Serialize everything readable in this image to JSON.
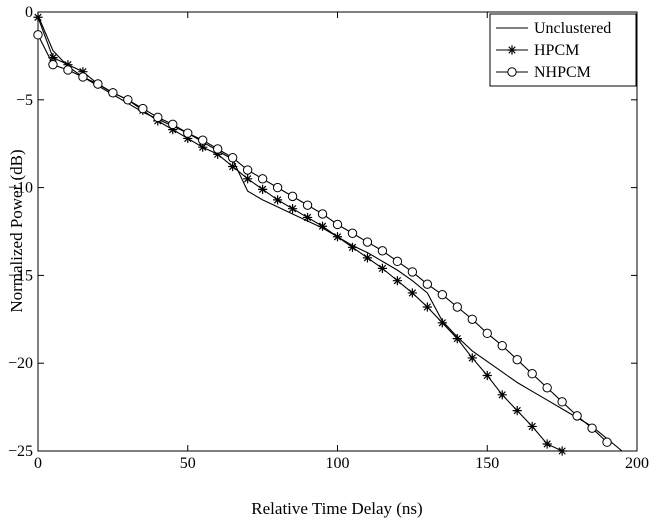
{
  "chart_data": {
    "type": "line",
    "xlabel": "Relative Time Delay (ns)",
    "ylabel": "Normalized Power (dB)",
    "xlim": [
      0,
      200
    ],
    "ylim": [
      -25,
      0
    ],
    "xticks": [
      0,
      50,
      100,
      150,
      200
    ],
    "yticks": [
      0,
      -5,
      -10,
      -15,
      -20,
      -25
    ],
    "grid": false,
    "legend_position": "top-right",
    "series": [
      {
        "name": "Unclustered",
        "marker": "none",
        "x": [
          0,
          5,
          10,
          15,
          20,
          25,
          30,
          35,
          40,
          45,
          50,
          55,
          60,
          65,
          70,
          75,
          80,
          85,
          90,
          95,
          100,
          105,
          110,
          115,
          120,
          125,
          130,
          135,
          140,
          145,
          150,
          155,
          160,
          165,
          170,
          175,
          180,
          185,
          190,
          195
        ],
        "y": [
          -0.2,
          -2.2,
          -3.1,
          -3.7,
          -4.2,
          -4.7,
          -5.2,
          -5.7,
          -6.1,
          -6.5,
          -6.9,
          -7.4,
          -7.9,
          -8.4,
          -10.2,
          -10.7,
          -11.1,
          -11.5,
          -11.9,
          -12.3,
          -12.8,
          -13.3,
          -13.7,
          -14.2,
          -14.7,
          -15.3,
          -16.0,
          -17.6,
          -18.5,
          -19.3,
          -19.9,
          -20.5,
          -21.1,
          -21.6,
          -22.1,
          -22.6,
          -23.1,
          -23.6,
          -24.3,
          -25.0
        ]
      },
      {
        "name": "HPCM",
        "marker": "star",
        "x": [
          0,
          5,
          10,
          15,
          20,
          25,
          30,
          35,
          40,
          45,
          50,
          55,
          60,
          65,
          70,
          75,
          80,
          85,
          90,
          95,
          100,
          105,
          110,
          115,
          120,
          125,
          130,
          135,
          140,
          145,
          150,
          155,
          160,
          165,
          170,
          175
        ],
        "y": [
          -0.3,
          -2.6,
          -3.0,
          -3.4,
          -4.1,
          -4.6,
          -5.0,
          -5.6,
          -6.2,
          -6.7,
          -7.2,
          -7.7,
          -8.1,
          -8.8,
          -9.5,
          -10.1,
          -10.7,
          -11.2,
          -11.7,
          -12.2,
          -12.8,
          -13.4,
          -14.0,
          -14.6,
          -15.3,
          -16.0,
          -16.8,
          -17.7,
          -18.6,
          -19.7,
          -20.7,
          -21.8,
          -22.7,
          -23.6,
          -24.6,
          -25.0
        ]
      },
      {
        "name": "NHPCM",
        "marker": "circle",
        "x": [
          0,
          5,
          10,
          15,
          20,
          25,
          30,
          35,
          40,
          45,
          50,
          55,
          60,
          65,
          70,
          75,
          80,
          85,
          90,
          95,
          100,
          105,
          110,
          115,
          120,
          125,
          130,
          135,
          140,
          145,
          150,
          155,
          160,
          165,
          170,
          175,
          180,
          185,
          190
        ],
        "y": [
          -1.3,
          -3.0,
          -3.3,
          -3.7,
          -4.1,
          -4.6,
          -5.0,
          -5.5,
          -6.0,
          -6.4,
          -6.9,
          -7.3,
          -7.8,
          -8.3,
          -9.0,
          -9.5,
          -10.0,
          -10.5,
          -11.0,
          -11.5,
          -12.1,
          -12.6,
          -13.1,
          -13.6,
          -14.2,
          -14.8,
          -15.5,
          -16.1,
          -16.8,
          -17.5,
          -18.3,
          -19.0,
          -19.8,
          -20.6,
          -21.4,
          -22.2,
          -23.0,
          -23.7,
          -24.5
        ]
      }
    ]
  }
}
